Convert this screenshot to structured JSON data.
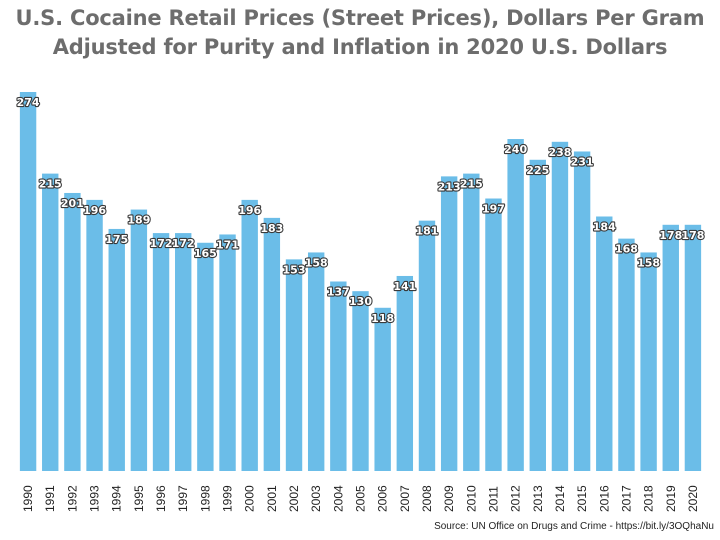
{
  "chart_data": {
    "type": "bar",
    "title_lines": [
      "U.S. Cocaine Retail Prices (Street Prices), Dollars Per Gram",
      "Adjusted for Purity and Inflation in 2020 U.S. Dollars"
    ],
    "categories": [
      "1990",
      "1991",
      "1992",
      "1993",
      "1994",
      "1995",
      "1996",
      "1997",
      "1998",
      "1999",
      "2000",
      "2001",
      "2002",
      "2003",
      "2004",
      "2005",
      "2006",
      "2007",
      "2008",
      "2009",
      "2010",
      "2011",
      "2012",
      "2013",
      "2014",
      "2015",
      "2016",
      "2017",
      "2018",
      "2019",
      "2020"
    ],
    "values": [
      274,
      215,
      201,
      196,
      175,
      189,
      172,
      172,
      165,
      171,
      196,
      183,
      153,
      158,
      137,
      130,
      118,
      141,
      181,
      213,
      215,
      197,
      240,
      225,
      238,
      231,
      184,
      168,
      158,
      178,
      178
    ],
    "ylim": [
      0,
      274
    ],
    "grid": false,
    "bar_color": "#6bbde8",
    "label_color": "#ffffff",
    "xlabel": "",
    "ylabel": ""
  },
  "source": "Source: UN Office on Drugs and Crime - https://bit.ly/3OQhaNu"
}
